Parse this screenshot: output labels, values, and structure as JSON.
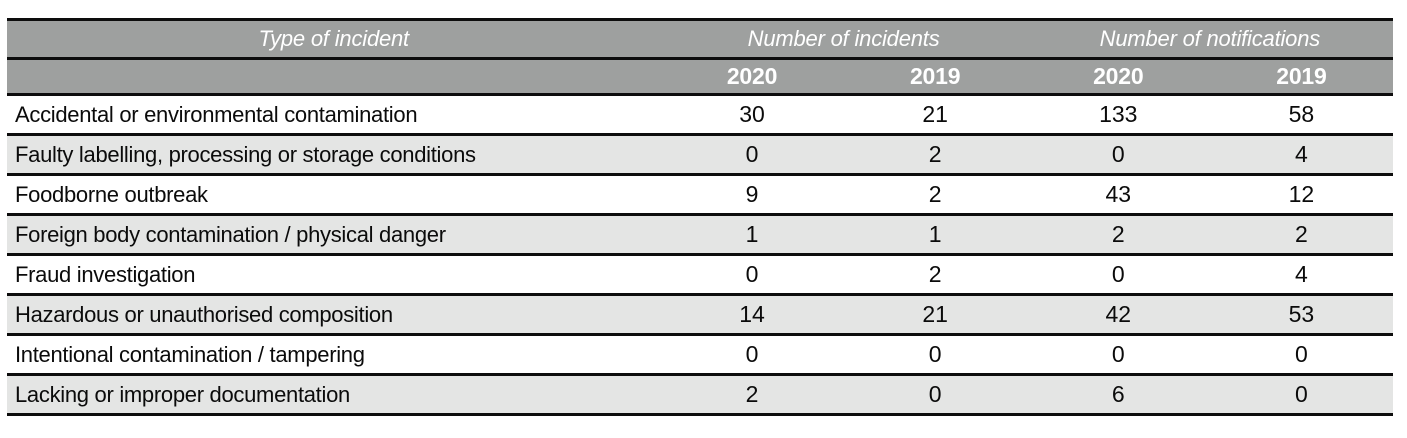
{
  "colors": {
    "header_bg": "#9EA09F",
    "header_text": "#FFFFFF",
    "row_alt_bg": "#E4E5E4",
    "border": "#0D0D0D",
    "body_text": "#0B0B0B"
  },
  "table": {
    "header": {
      "type_col": "Type of incident",
      "group_incidents": "Number of incidents",
      "group_notifications": "Number of notifications",
      "years": [
        "2020",
        "2019",
        "2020",
        "2019"
      ]
    },
    "rows": [
      {
        "label": "Accidental or environmental contamination",
        "values": [
          "30",
          "21",
          "133",
          "58"
        ]
      },
      {
        "label": "Faulty labelling, processing or storage conditions",
        "values": [
          "0",
          "2",
          "0",
          "4"
        ]
      },
      {
        "label": "Foodborne outbreak",
        "values": [
          "9",
          "2",
          "43",
          "12"
        ]
      },
      {
        "label": "Foreign body contamination / physical danger",
        "values": [
          "1",
          "1",
          "2",
          "2"
        ]
      },
      {
        "label": "Fraud investigation",
        "values": [
          "0",
          "2",
          "0",
          "4"
        ]
      },
      {
        "label": "Hazardous or unauthorised composition",
        "values": [
          "14",
          "21",
          "42",
          "53"
        ]
      },
      {
        "label": "Intentional contamination / tampering",
        "values": [
          "0",
          "0",
          "0",
          "0"
        ]
      },
      {
        "label": "Lacking or improper documentation",
        "values": [
          "2",
          "0",
          "6",
          "0"
        ]
      }
    ]
  }
}
